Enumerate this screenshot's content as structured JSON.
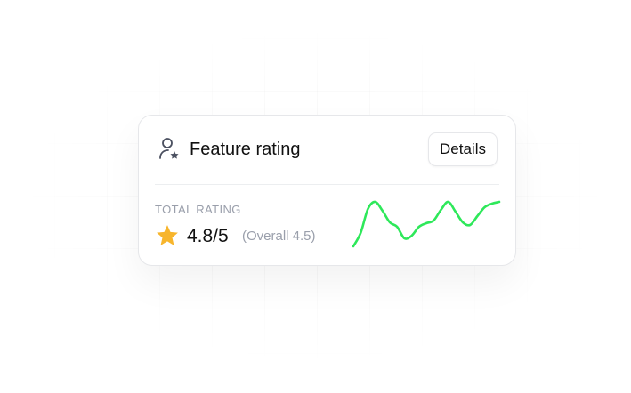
{
  "card": {
    "title": "Feature rating",
    "details_label": "Details",
    "total_label": "TOTAL RATING",
    "score": "4.8/5",
    "overall": "(Overall 4.5)",
    "icon": "user-star-icon",
    "star_icon": "star-icon",
    "star_color": "#F7B52C",
    "spark_color": "#2EE85A"
  },
  "chart_data": {
    "type": "line",
    "values": [
      1,
      16,
      43,
      51,
      41,
      28,
      23,
      10,
      13,
      23,
      27,
      30,
      42,
      51,
      40,
      28,
      25,
      35,
      45,
      49,
      51
    ]
  }
}
